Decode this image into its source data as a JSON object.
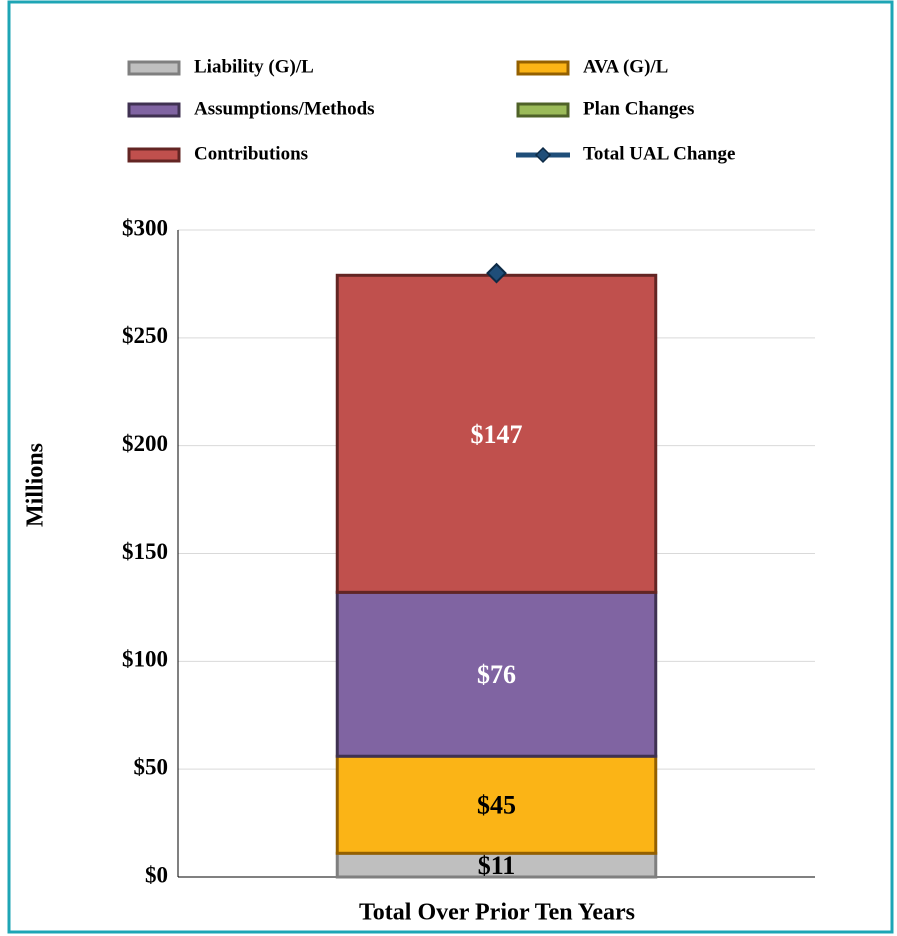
{
  "chart_data": {
    "type": "bar",
    "stacked": true,
    "x_label": "Total Over Prior Ten Years",
    "y_label": "Millions",
    "categories": [
      null
    ],
    "series": [
      {
        "name": "Liability (G)/L",
        "color": "#bfbfbf",
        "stroke": "#7f7f7f",
        "label_color": "#000000",
        "values": [
          11
        ],
        "value_labels": [
          "$11"
        ]
      },
      {
        "name": "AVA (G)/L",
        "color": "#fbb416",
        "stroke": "#946000",
        "label_color": "#000000",
        "values": [
          45
        ],
        "value_labels": [
          "$45"
        ]
      },
      {
        "name": "Assumptions/Methods",
        "color": "#8064a2",
        "stroke": "#3f3151",
        "label_color": "#ffffff",
        "values": [
          76
        ],
        "value_labels": [
          "$76"
        ]
      },
      {
        "name": "Plan Changes",
        "color": "#9bbb59",
        "stroke": "#4f6228",
        "label_color": "#000000",
        "values": [
          0
        ],
        "value_labels": [
          null
        ]
      },
      {
        "name": "Contributions",
        "color": "#c0504d",
        "stroke": "#632523",
        "label_color": "#ffffff",
        "values": [
          147
        ],
        "value_labels": [
          "$147"
        ]
      },
      {
        "name": "Total UAL Change",
        "type": "line",
        "color": "#1f4e79",
        "stroke": "#0d2a45",
        "values": [
          280
        ]
      }
    ],
    "ylim": [
      0,
      300
    ],
    "yticks": [
      {
        "value": 0,
        "label": "$0"
      },
      {
        "value": 50,
        "label": "$50"
      },
      {
        "value": 100,
        "label": "$100"
      },
      {
        "value": 150,
        "label": "$150"
      },
      {
        "value": 200,
        "label": "$200"
      },
      {
        "value": 250,
        "label": "$250"
      },
      {
        "value": 300,
        "label": "$300"
      }
    ],
    "grid": true,
    "legend": "top"
  }
}
